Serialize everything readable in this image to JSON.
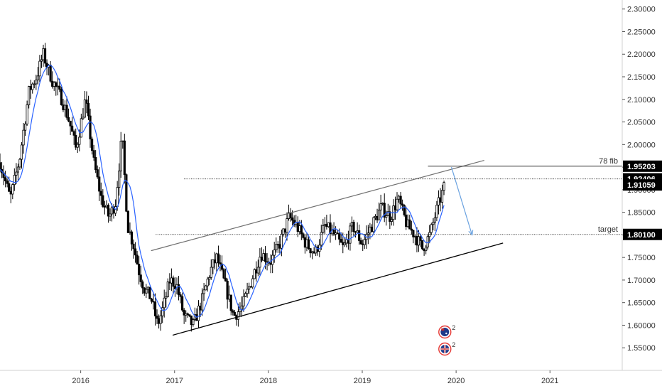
{
  "chart_data": {
    "type": "candlestick",
    "title": "",
    "xlabel": "",
    "ylabel": "",
    "x_tick_labels": [
      "2016",
      "2017",
      "2018",
      "2019",
      "2020",
      "2021"
    ],
    "x_tick_years": [
      2016,
      2017,
      2018,
      2019,
      2020,
      2021
    ],
    "xlim": [
      2015.14,
      2021.77
    ],
    "y_ticks": [
      1.55,
      1.6,
      1.65,
      1.7,
      1.75,
      1.8,
      1.85,
      1.9,
      1.95,
      2.0,
      2.05,
      2.1,
      2.15,
      2.2,
      2.25,
      2.3
    ],
    "y_tick_labels": [
      "1.55000",
      "1.60000",
      "1.65000",
      "1.70000",
      "1.75000",
      "1.80000",
      "1.85000",
      "1.90000",
      "1.95000",
      "2.00000",
      "2.05000",
      "2.10000",
      "2.15000",
      "2.20000",
      "2.25000",
      "2.30000"
    ],
    "ylim": [
      1.5,
      2.32
    ],
    "grid": false,
    "price_path": [
      [
        2015.14,
        1.96
      ],
      [
        2015.25,
        1.88
      ],
      [
        2015.35,
        1.97
      ],
      [
        2015.45,
        2.12
      ],
      [
        2015.53,
        2.15
      ],
      [
        2015.6,
        2.2
      ],
      [
        2015.7,
        2.14
      ],
      [
        2015.8,
        2.1
      ],
      [
        2015.88,
        2.05
      ],
      [
        2015.95,
        1.99
      ],
      [
        2016.05,
        2.1
      ],
      [
        2016.14,
        1.96
      ],
      [
        2016.22,
        1.88
      ],
      [
        2016.3,
        1.84
      ],
      [
        2016.37,
        1.87
      ],
      [
        2016.44,
        2.02
      ],
      [
        2016.5,
        1.82
      ],
      [
        2016.56,
        1.78
      ],
      [
        2016.62,
        1.72
      ],
      [
        2016.68,
        1.68
      ],
      [
        2016.75,
        1.66
      ],
      [
        2016.82,
        1.6
      ],
      [
        2016.88,
        1.64
      ],
      [
        2016.95,
        1.7
      ],
      [
        2017.02,
        1.69
      ],
      [
        2017.1,
        1.62
      ],
      [
        2017.2,
        1.6
      ],
      [
        2017.3,
        1.66
      ],
      [
        2017.38,
        1.72
      ],
      [
        2017.45,
        1.75
      ],
      [
        2017.55,
        1.68
      ],
      [
        2017.63,
        1.62
      ],
      [
        2017.72,
        1.64
      ],
      [
        2017.82,
        1.7
      ],
      [
        2017.92,
        1.76
      ],
      [
        2018.02,
        1.74
      ],
      [
        2018.12,
        1.78
      ],
      [
        2018.22,
        1.84
      ],
      [
        2018.3,
        1.82
      ],
      [
        2018.4,
        1.78
      ],
      [
        2018.5,
        1.76
      ],
      [
        2018.6,
        1.82
      ],
      [
        2018.7,
        1.8
      ],
      [
        2018.8,
        1.77
      ],
      [
        2018.9,
        1.82
      ],
      [
        2019.0,
        1.78
      ],
      [
        2019.1,
        1.82
      ],
      [
        2019.2,
        1.86
      ],
      [
        2019.3,
        1.84
      ],
      [
        2019.38,
        1.88
      ],
      [
        2019.48,
        1.82
      ],
      [
        2019.56,
        1.8
      ],
      [
        2019.64,
        1.77
      ],
      [
        2019.72,
        1.8
      ],
      [
        2019.8,
        1.86
      ],
      [
        2019.88,
        1.91
      ]
    ],
    "moving_average_color": "#2962ff",
    "candle_color": "#000000",
    "annotations": {
      "resistance_level": {
        "label": "78 fib",
        "value": 1.95203,
        "value_label": "1.95203"
      },
      "current_price": {
        "value": 1.92406,
        "value_label": "1.92406"
      },
      "ma_level": {
        "value": 1.91059,
        "value_label": "1.91059"
      },
      "target_level": {
        "label": "target",
        "value": 1.801,
        "value_label": "1.80100"
      },
      "projection_arrow": {
        "from": [
          2019.95,
          1.95
        ],
        "to": [
          2020.17,
          1.8
        ],
        "color": "#6aa2e0"
      },
      "channel_upper": [
        [
          2016.75,
          1.765
        ],
        [
          2020.3,
          1.965
        ]
      ],
      "channel_lower": [
        [
          2016.98,
          1.578
        ],
        [
          2020.5,
          1.782
        ]
      ]
    },
    "event_markers": [
      {
        "flag": "AU",
        "count": "2"
      },
      {
        "flag": "GB",
        "count": "2"
      }
    ]
  }
}
